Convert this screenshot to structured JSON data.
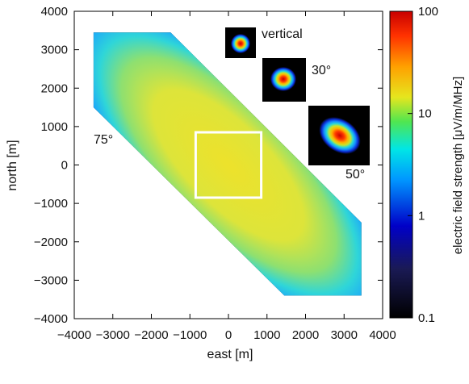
{
  "chart_data": {
    "type": "heatmap",
    "title": "",
    "xlabel": "east [m]",
    "ylabel": "north [m]",
    "xlim": [
      -4000,
      4000
    ],
    "ylim": [
      -4000,
      4000
    ],
    "x_ticks": [
      -4000,
      -3000,
      -2000,
      -1000,
      0,
      1000,
      2000,
      3000,
      4000
    ],
    "y_ticks": [
      -4000,
      -3000,
      -2000,
      -1000,
      0,
      1000,
      2000,
      3000,
      4000
    ],
    "x_tick_labels": [
      "−4000",
      "−3000",
      "−2000",
      "−1000",
      "0",
      "1000",
      "2000",
      "3000",
      "4000"
    ],
    "y_tick_labels": [
      "−4000",
      "−3000",
      "−2000",
      "−1000",
      "0",
      "1000",
      "2000",
      "3000",
      "4000"
    ],
    "colorbar": {
      "label": "electric field strength  [μV/m/MHz]",
      "scale": "log",
      "range": [
        0.1,
        100
      ],
      "ticks": [
        0.1,
        1,
        10,
        100
      ],
      "tick_labels": [
        "0.1",
        "1",
        "10",
        "100"
      ],
      "colormap": [
        "#000000",
        "#0000c8",
        "#0096ff",
        "#00e6e6",
        "#50e650",
        "#e6e61e",
        "#ffa000",
        "#ff3200",
        "#c80000"
      ]
    },
    "footprint": {
      "zenith_label": "75°",
      "polygon_corners": [
        [
          -3500,
          3450
        ],
        [
          -1500,
          3450
        ],
        [
          3450,
          -1500
        ],
        [
          3450,
          -3400
        ],
        [
          1450,
          -3400
        ],
        [
          -3500,
          1500
        ]
      ],
      "ellipse_center": [
        0,
        0
      ],
      "ellipse_axis_angle_deg": -45
    },
    "zoom_box": {
      "x": [
        -850,
        850
      ],
      "y": [
        -850,
        850
      ],
      "color": "#ffffff"
    },
    "insets": [
      {
        "label": "vertical"
      },
      {
        "label": "30°"
      },
      {
        "label": "50°"
      }
    ]
  }
}
